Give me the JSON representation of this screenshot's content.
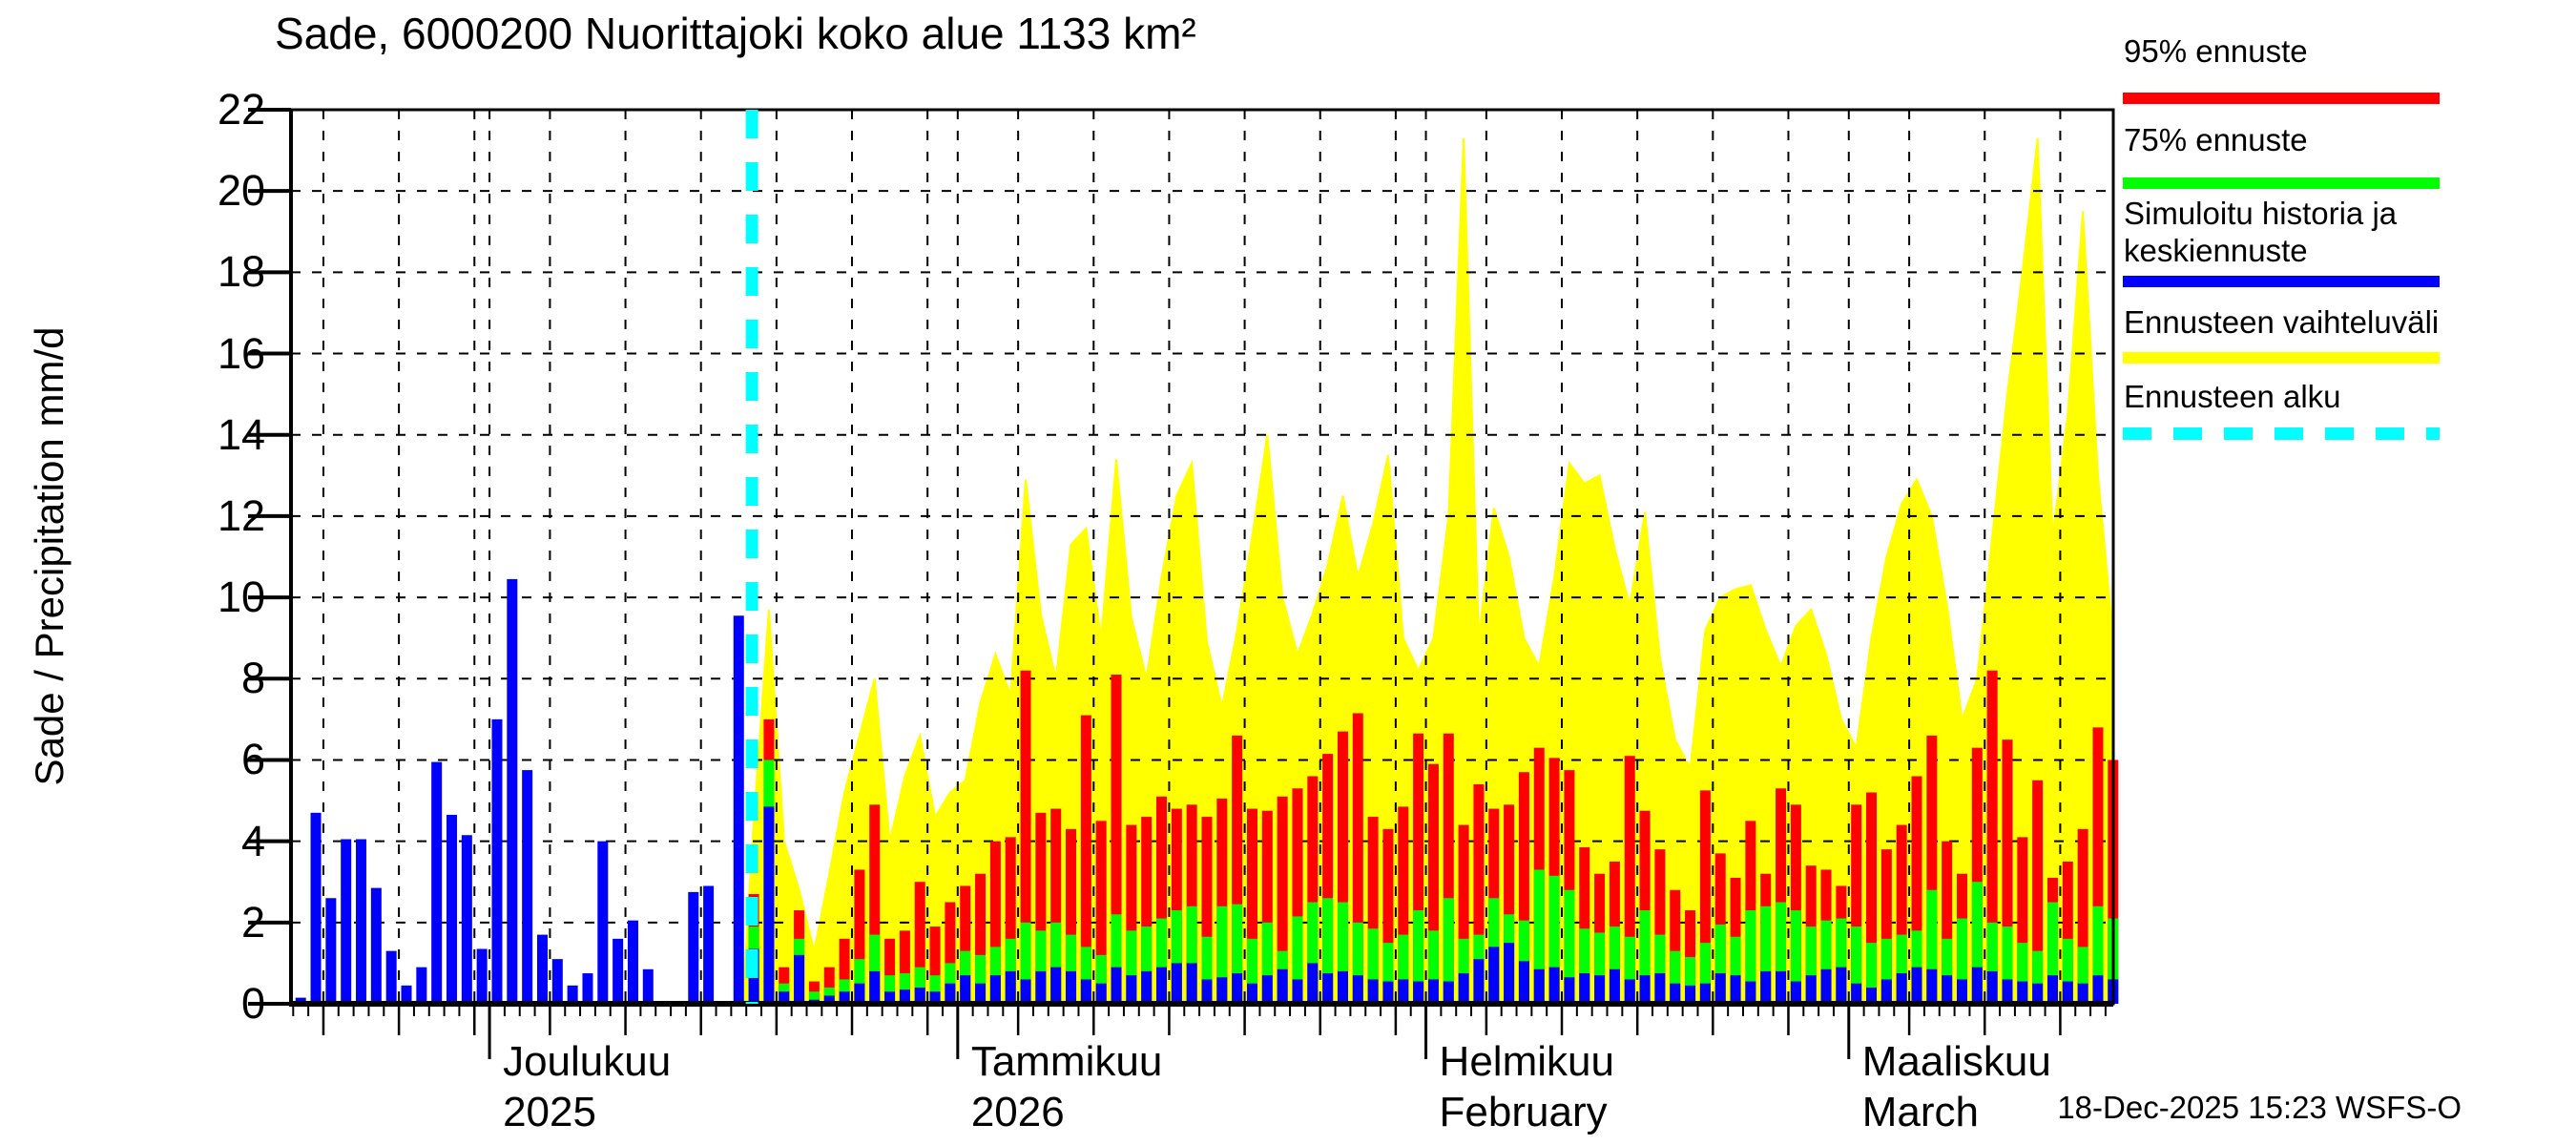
{
  "title": "Sade, 6000200 Nuorittajoki koko alue 1133 km²",
  "y_axis": {
    "label": "Sade / Precipitation  mm/d",
    "unit": "mm/d",
    "ticks": [
      0,
      2,
      4,
      6,
      8,
      10,
      12,
      14,
      16,
      18,
      20,
      22
    ],
    "min": 0,
    "max": 22
  },
  "x_axis": {
    "months": [
      {
        "label": "Joulukuu",
        "sublabel": "2025",
        "day_index": 13
      },
      {
        "label": "Tammikuu",
        "sublabel": "2026",
        "day_index": 44
      },
      {
        "label": "Helmikuu",
        "sublabel": "February",
        "day_index": 75
      },
      {
        "label": "Maaliskuu",
        "sublabel": "March",
        "day_index": 103
      }
    ],
    "minor_tick_day_indices": [
      2,
      7,
      12,
      17,
      22,
      27,
      32,
      37,
      42,
      48,
      53,
      58,
      63,
      68,
      73,
      79,
      84,
      89,
      94,
      99,
      107,
      112,
      117
    ],
    "major_tick_day_indices": [
      13,
      44,
      75,
      103
    ],
    "total_days": 121
  },
  "footer": "18-Dec-2025 15:23 WSFS-O",
  "legend": [
    {
      "label": "95% ennuste",
      "color": "#ff0000",
      "style": "solid"
    },
    {
      "label": "75% ennuste",
      "color": "#00ff00",
      "style": "solid"
    },
    {
      "label": "Simuloitu historia ja",
      "label2": "keskiennuste",
      "color": "#0000ff",
      "style": "solid"
    },
    {
      "label": "Ennusteen vaihteluväli",
      "color": "#ffff00",
      "style": "solid"
    },
    {
      "label": "Ennusteen alku",
      "color": "#00ffff",
      "style": "dashed"
    }
  ],
  "colors": {
    "history": "#0000ff",
    "median": "#0000ff",
    "p75": "#00ff00",
    "p95": "#ff0000",
    "range": "#ffff00",
    "forecast_start": "#00ffff",
    "grid": "#000000",
    "frame": "#000000",
    "background": "#ffffff"
  },
  "chart_data": {
    "type": "bar",
    "title": "Sade, 6000200 Nuorittajoki koko alue 1133 km²",
    "xlabel": "",
    "ylabel": "Sade / Precipitation  mm/d",
    "ylim": [
      0,
      22
    ],
    "grid": "dashed",
    "legend_position": "right",
    "start_date": "2025-11-18",
    "forecast_start_date": "2025-12-18",
    "forecast_start_day_index": 30,
    "end_date": "2026-03-18",
    "history": {
      "name": "Simuloitu historia",
      "values": [
        0.15,
        4.7,
        2.6,
        4.05,
        4.05,
        2.85,
        1.3,
        0.45,
        0.9,
        5.95,
        4.65,
        4.15,
        1.35,
        7.0,
        10.45,
        5.75,
        1.7,
        1.1,
        0.45,
        0.75,
        4.0,
        1.6,
        2.05,
        0.85,
        0.05,
        0,
        2.75,
        2.9,
        0.05,
        9.55
      ]
    },
    "forecast": {
      "series": [
        {
          "name": "keskiennuste (mediaani)",
          "values": [
            1.35,
            4.85,
            0.3,
            1.2,
            0.1,
            0.2,
            0.3,
            0.5,
            0.8,
            0.3,
            0.35,
            0.4,
            0.3,
            0.5,
            0.7,
            0.5,
            0.7,
            0.8,
            0.6,
            0.8,
            0.9,
            0.8,
            0.6,
            0.5,
            0.9,
            0.7,
            0.8,
            0.9,
            1.0,
            1.0,
            0.6,
            0.65,
            0.75,
            0.5,
            0.7,
            0.85,
            0.6,
            1.0,
            0.75,
            0.8,
            0.7,
            0.6,
            0.55,
            0.6,
            0.55,
            0.6,
            0.55,
            0.75,
            1.1,
            1.4,
            1.5,
            1.05,
            0.85,
            0.9,
            0.65,
            0.75,
            0.7,
            0.85,
            0.6,
            0.7,
            0.75,
            0.5,
            0.45,
            0.5,
            0.75,
            0.7,
            0.55,
            0.8,
            0.8,
            0.55,
            0.7,
            0.85,
            0.9,
            0.5,
            0.4,
            0.6,
            0.75,
            0.9,
            0.85,
            0.7,
            0.6,
            0.9,
            0.8,
            0.6,
            0.55,
            0.5,
            0.7,
            0.55,
            0.5,
            0.7,
            0.6
          ]
        },
        {
          "name": "75% ennuste",
          "values": [
            1.9,
            6.0,
            0.5,
            1.6,
            0.3,
            0.4,
            0.6,
            1.1,
            1.7,
            0.7,
            0.75,
            0.9,
            0.7,
            1.0,
            1.3,
            1.2,
            1.4,
            1.6,
            2.0,
            1.8,
            2.0,
            1.7,
            1.4,
            1.2,
            2.2,
            1.8,
            1.9,
            2.1,
            2.3,
            2.4,
            1.65,
            2.4,
            2.45,
            1.6,
            2.0,
            1.3,
            2.15,
            2.5,
            2.6,
            2.5,
            2.0,
            1.85,
            1.5,
            1.7,
            2.3,
            1.8,
            2.6,
            1.6,
            1.7,
            2.6,
            2.2,
            2.05,
            3.3,
            3.15,
            2.8,
            1.85,
            1.75,
            1.9,
            1.65,
            2.3,
            1.7,
            1.3,
            1.15,
            1.5,
            1.95,
            1.65,
            2.3,
            2.4,
            2.5,
            2.3,
            1.9,
            2.05,
            2.1,
            1.9,
            1.5,
            1.6,
            1.7,
            1.8,
            2.8,
            1.6,
            2.1,
            3.0,
            2.0,
            1.9,
            1.5,
            1.3,
            2.5,
            1.6,
            1.4,
            2.4,
            2.1
          ]
        },
        {
          "name": "95% ennuste",
          "values": [
            2.7,
            7.0,
            0.9,
            2.3,
            0.55,
            0.9,
            1.6,
            3.3,
            4.9,
            1.6,
            1.8,
            3.0,
            1.9,
            2.5,
            2.9,
            3.2,
            4.0,
            4.1,
            8.2,
            4.7,
            4.8,
            4.3,
            7.1,
            4.5,
            8.1,
            4.4,
            4.6,
            5.1,
            4.8,
            4.9,
            4.6,
            5.05,
            6.6,
            4.8,
            4.75,
            5.1,
            5.3,
            5.6,
            6.15,
            6.7,
            7.15,
            4.6,
            4.3,
            4.85,
            6.65,
            5.9,
            6.65,
            4.4,
            5.4,
            4.8,
            4.9,
            5.7,
            6.3,
            6.05,
            5.75,
            3.85,
            3.2,
            3.5,
            6.1,
            4.75,
            3.8,
            2.8,
            2.3,
            5.25,
            3.7,
            3.1,
            4.5,
            3.2,
            5.3,
            4.9,
            3.4,
            3.3,
            2.9,
            4.9,
            5.2,
            3.8,
            4.4,
            5.6,
            6.6,
            4.0,
            3.2,
            6.3,
            8.2,
            6.5,
            4.1,
            5.5,
            3.1,
            3.5,
            4.3,
            6.8,
            6.0
          ]
        },
        {
          "name": "Ennusteen vaihteluväli (max)",
          "values": [
            4.5,
            9.7,
            4.0,
            2.8,
            1.3,
            3.2,
            5.2,
            6.6,
            8.0,
            4.0,
            5.6,
            6.6,
            4.6,
            5.2,
            5.5,
            7.4,
            8.6,
            7.6,
            12.9,
            9.6,
            8.0,
            11.3,
            11.7,
            9.0,
            13.4,
            9.5,
            8.0,
            10.5,
            12.5,
            13.3,
            8.9,
            7.3,
            9.2,
            11.5,
            14.0,
            10.0,
            8.6,
            9.6,
            10.8,
            12.5,
            10.5,
            11.8,
            13.5,
            9.0,
            8.2,
            9.0,
            12.0,
            21.3,
            9.0,
            12.2,
            11.0,
            9.0,
            8.3,
            10.5,
            13.3,
            12.8,
            13.0,
            11.2,
            9.8,
            12.1,
            8.5,
            6.5,
            5.8,
            9.2,
            10.0,
            10.2,
            10.3,
            9.2,
            8.3,
            9.3,
            9.7,
            8.6,
            7.0,
            6.3,
            9.0,
            11.0,
            12.3,
            12.9,
            12.0,
            9.8,
            7.0,
            8.0,
            11.5,
            15.0,
            18.0,
            21.3,
            11.5,
            14.5,
            19.5,
            13.0,
            9.0
          ]
        }
      ]
    }
  }
}
